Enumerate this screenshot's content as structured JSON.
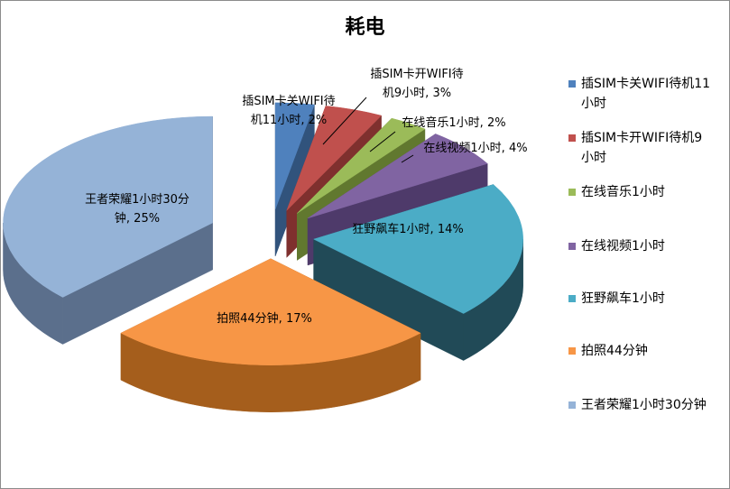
{
  "chart_data": {
    "type": "pie",
    "title": "耗电",
    "legend_position": "right",
    "categories": [
      "插SIM卡关WIFI待机11小时",
      "插SIM卡开WIFI待机9小时",
      "在线音乐1小时",
      "在线视频1小时",
      "狂野飙车1小时",
      "拍照44分钟",
      "王者荣耀1小时30分钟"
    ],
    "values": [
      2,
      3,
      2,
      4,
      14,
      17,
      25
    ],
    "value_suffix": "%",
    "colors": [
      "#4f81bd",
      "#c0504d",
      "#9bbb59",
      "#8064a2",
      "#4bacc6",
      "#f79646",
      "#95b3d7"
    ],
    "side_colors": [
      "#31537c",
      "#7f302e",
      "#61782f",
      "#4e3a6a",
      "#214a57",
      "#a55e1c",
      "#5b6f8c"
    ],
    "data_labels": [
      [
        "插SIM卡关WIFI待",
        "机11小时, 2%"
      ],
      [
        "插SIM卡开WIFI待",
        "机9小时, 3%"
      ],
      [
        "在线音乐1小时, 2%"
      ],
      [
        "在线视频1小时, 4%"
      ],
      [
        "狂野飙车1小时, 14%"
      ],
      [
        "拍照44分钟, 17%"
      ],
      [
        "王者荣耀1小时30分",
        "钟, 25%"
      ]
    ],
    "legend_lines": [
      [
        "插SIM卡关WIFI待机11",
        "小时"
      ],
      [
        "插SIM卡开WIFI待机9",
        "小时"
      ],
      [
        "在线音乐1小时"
      ],
      [
        "在线视频1小时"
      ],
      [
        "狂野飙车1小时"
      ],
      [
        "拍照44分钟"
      ],
      [
        "王者荣耀1小时30分钟"
      ]
    ]
  }
}
